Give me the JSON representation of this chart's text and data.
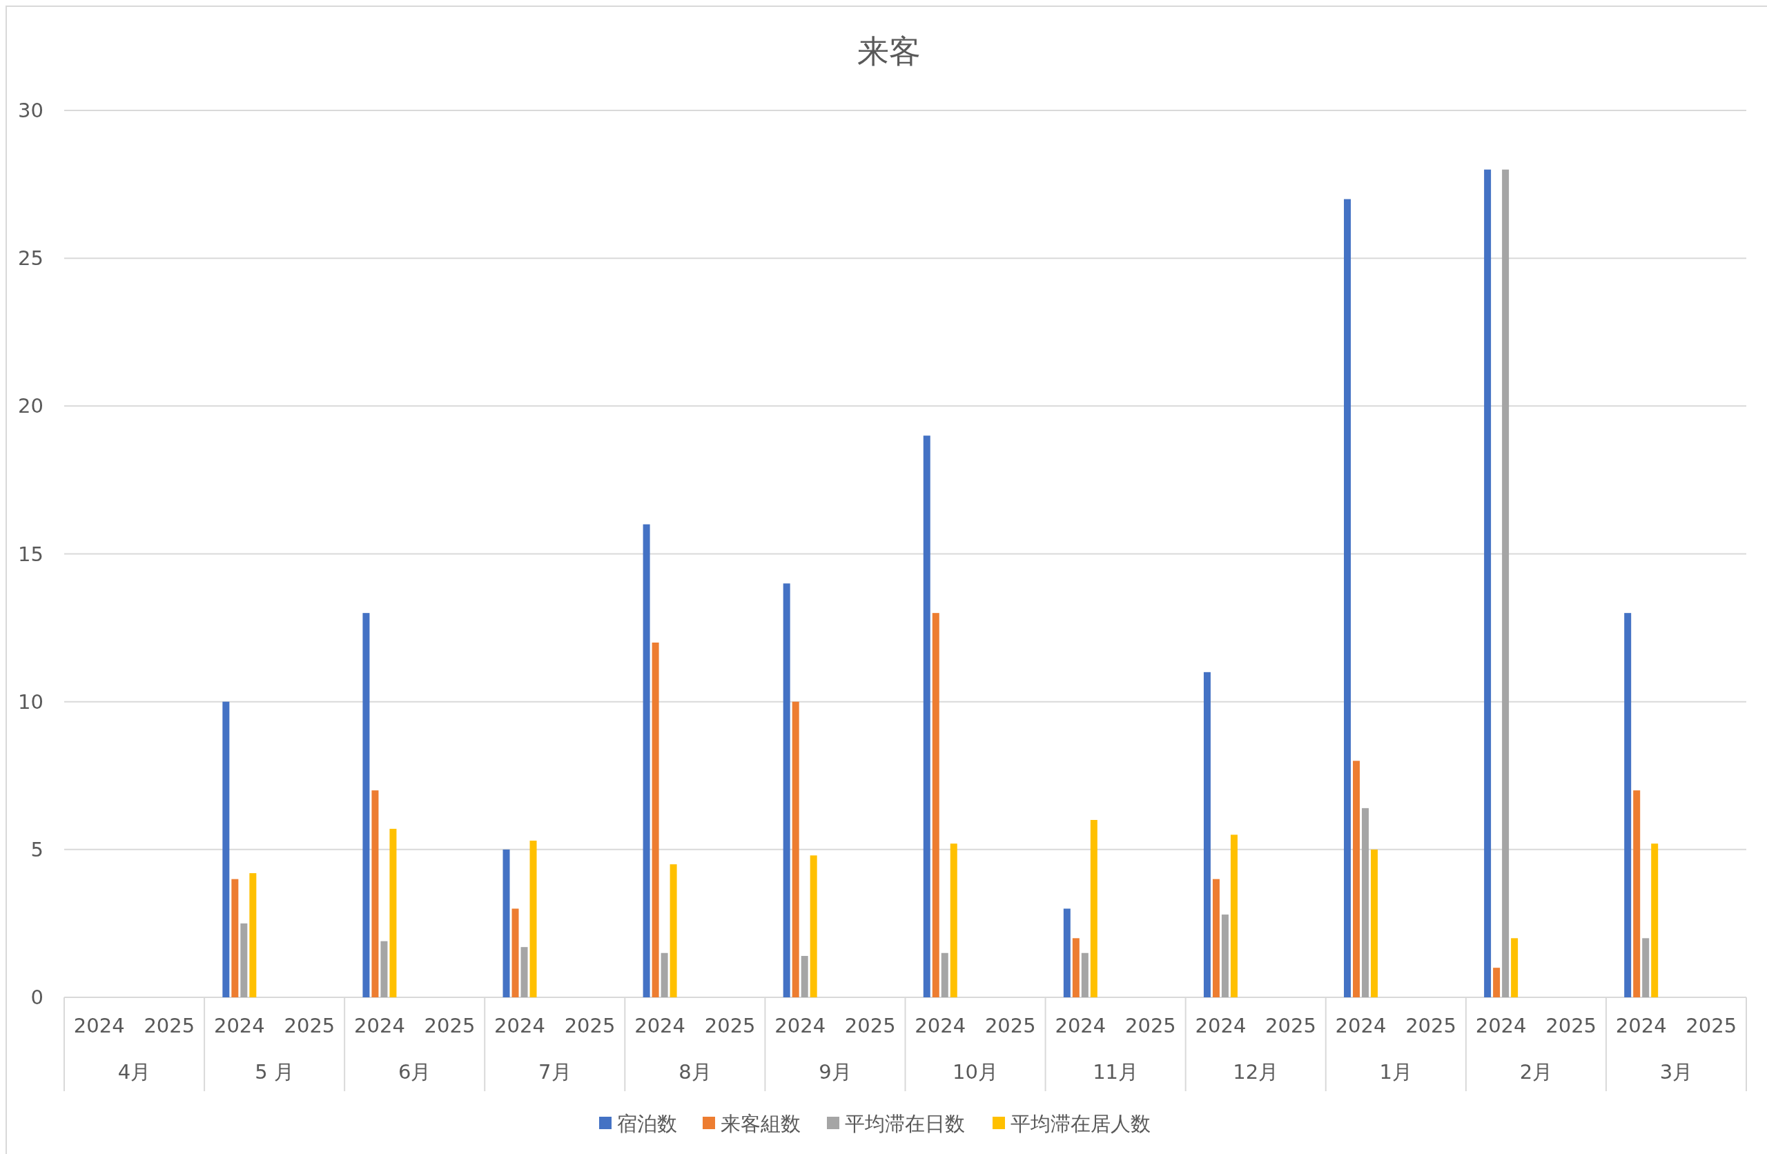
{
  "chart_data": {
    "type": "bar",
    "title": "来客",
    "categories": [
      "2024",
      "2025",
      "2024",
      "2025",
      "2024",
      "2025",
      "2024",
      "2025",
      "2024",
      "2025",
      "2024",
      "2025",
      "2024",
      "2025",
      "2024",
      "2025",
      "2024",
      "2025",
      "2024",
      "2025",
      "2024",
      "2025",
      "2024",
      "2025"
    ],
    "annotations": [
      "4月",
      "5 月",
      "6月",
      "7月",
      "8月",
      "9月",
      "10月",
      "11月",
      "12月",
      "1月",
      "2月",
      "3月"
    ],
    "series": [
      {
        "name": "宿泊数",
        "color": "#4472c4",
        "values": [
          null,
          null,
          10,
          null,
          13,
          null,
          5,
          null,
          16,
          null,
          14,
          null,
          19,
          null,
          3,
          null,
          11,
          null,
          27,
          null,
          28,
          null,
          13,
          null
        ]
      },
      {
        "name": "来客組数",
        "color": "#ed7d31",
        "values": [
          null,
          null,
          4,
          null,
          7,
          null,
          3,
          null,
          12,
          null,
          10,
          null,
          13,
          null,
          2,
          null,
          4,
          null,
          8,
          null,
          1,
          null,
          7,
          null
        ]
      },
      {
        "name": "平均滞在日数",
        "color": "#a5a5a5",
        "values": [
          null,
          null,
          2.5,
          null,
          1.9,
          null,
          1.7,
          null,
          1.5,
          null,
          1.4,
          null,
          1.5,
          null,
          1.5,
          null,
          2.8,
          null,
          6.4,
          null,
          28,
          null,
          2,
          null
        ]
      },
      {
        "name": "平均滞在居人数",
        "color": "#ffc000",
        "values": [
          null,
          null,
          4.2,
          null,
          5.7,
          null,
          5.3,
          null,
          4.5,
          null,
          4.8,
          null,
          5.2,
          null,
          6,
          null,
          5.5,
          null,
          5,
          null,
          2,
          null,
          5.2,
          null
        ]
      }
    ],
    "ylim": [
      0,
      30
    ],
    "yticks": [
      0,
      5,
      10,
      15,
      20,
      25,
      30
    ],
    "grid": "y",
    "legend": "bottom"
  }
}
